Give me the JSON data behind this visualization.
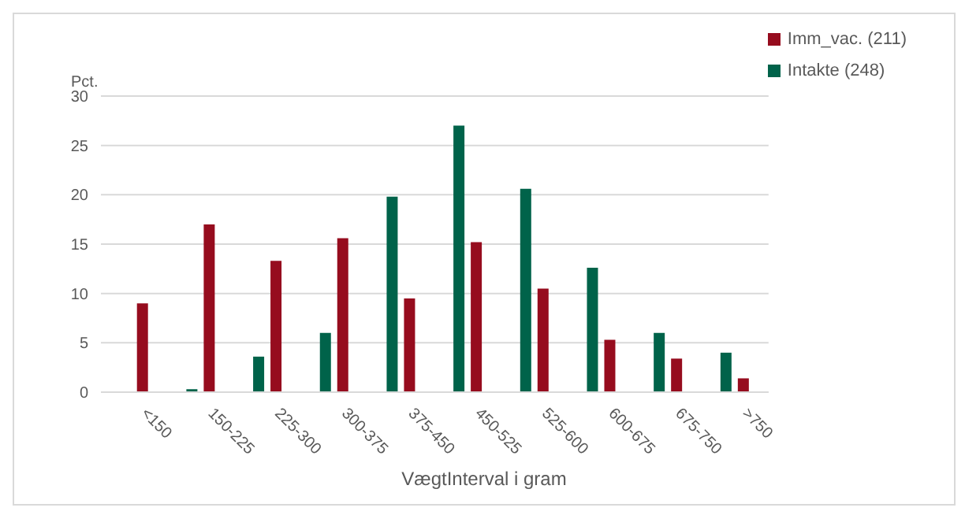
{
  "chart_data": {
    "type": "bar",
    "ylabel": "Pct.",
    "xlabel": "VægtInterval i gram",
    "categories": [
      "<150",
      "150-225",
      "225-300",
      "300-375",
      "375-450",
      "450-525",
      "525-600",
      "600-675",
      "675-750",
      ">750"
    ],
    "series": [
      {
        "name": "Intakte (248)",
        "color": "#00634a",
        "values": [
          null,
          0.3,
          3.6,
          6.0,
          19.8,
          27.0,
          20.6,
          12.6,
          6.0,
          4.0
        ]
      },
      {
        "name": "Imm_vac. (211)",
        "color": "#960c1e",
        "values": [
          9.0,
          17.0,
          13.3,
          15.6,
          9.5,
          15.2,
          10.5,
          5.3,
          3.4,
          1.4
        ]
      }
    ],
    "ylim": [
      0,
      30
    ],
    "yticks": [
      0,
      5,
      10,
      15,
      20,
      25,
      30
    ],
    "grid": "y",
    "legend": "top right"
  }
}
